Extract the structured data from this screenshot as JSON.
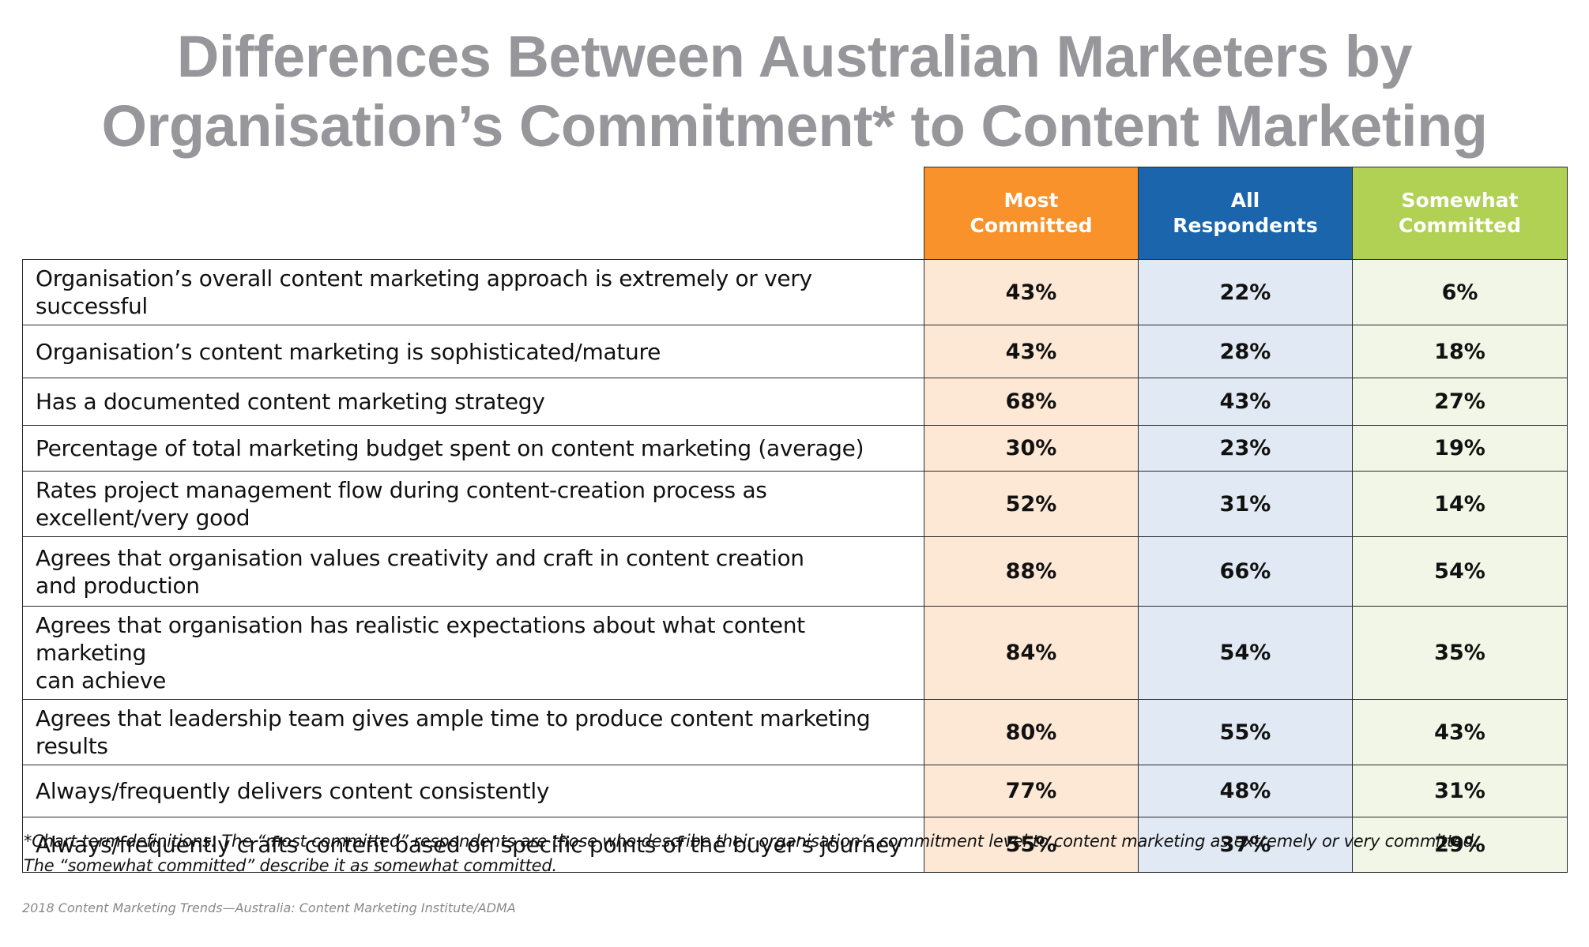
{
  "title_line1": "Differences Between Australian Marketers by",
  "title_line2": "Organisation’s Commitment* to Content Marketing",
  "colors": {
    "most": "#f9922a",
    "all": "#1a65ac",
    "some": "#b0d153",
    "title": "#97969b"
  },
  "chart_data": {
    "type": "table",
    "columns": [
      {
        "line1": "Most",
        "line2": "Committed"
      },
      {
        "line1": "All",
        "line2": "Respondents"
      },
      {
        "line1": "Somewhat",
        "line2": "Committed"
      }
    ],
    "rows": [
      {
        "label_lines": [
          "Organisation’s overall content marketing approach is extremely or very successful"
        ],
        "values": [
          "43%",
          "22%",
          "6%"
        ]
      },
      {
        "label_lines": [
          "Organisation’s content marketing is sophisticated/mature"
        ],
        "values": [
          "43%",
          "28%",
          "18%"
        ]
      },
      {
        "label_lines": [
          "Has a documented content marketing strategy"
        ],
        "values": [
          "68%",
          "43%",
          "27%"
        ]
      },
      {
        "label_lines": [
          "Percentage of total marketing budget spent on content marketing (average)"
        ],
        "values": [
          "30%",
          "23%",
          "19%"
        ]
      },
      {
        "label_lines": [
          "Rates project management flow during content-creation process as excellent/very good"
        ],
        "values": [
          "52%",
          "31%",
          "14%"
        ]
      },
      {
        "label_lines": [
          "Agrees that organisation values creativity and craft in content creation",
          "and production"
        ],
        "values": [
          "88%",
          "66%",
          "54%"
        ]
      },
      {
        "label_lines": [
          "Agrees that organisation has realistic expectations about what content marketing",
          "can achieve"
        ],
        "values": [
          "84%",
          "54%",
          "35%"
        ]
      },
      {
        "label_lines": [
          "Agrees that leadership team gives ample time to produce content marketing results"
        ],
        "values": [
          "80%",
          "55%",
          "43%"
        ]
      },
      {
        "label_lines": [
          "Always/frequently delivers content consistently"
        ],
        "values": [
          "77%",
          "48%",
          "31%"
        ]
      },
      {
        "label_lines": [
          "Always/frequently crafts content based on  specific points of the buyer’s journey"
        ],
        "values": [
          "55%",
          "37%",
          "29%"
        ]
      }
    ]
  },
  "footnote_line1": "*Chart term definitions: The “most committed” respondents are those who describe their organisation’s commitment level to content marketing as extremely or very committed.",
  "footnote_line2": "The “somewhat committed” describe it as somewhat committed.",
  "source": "2018 Content Marketing Trends—Australia: Content Marketing Institute/ADMA"
}
